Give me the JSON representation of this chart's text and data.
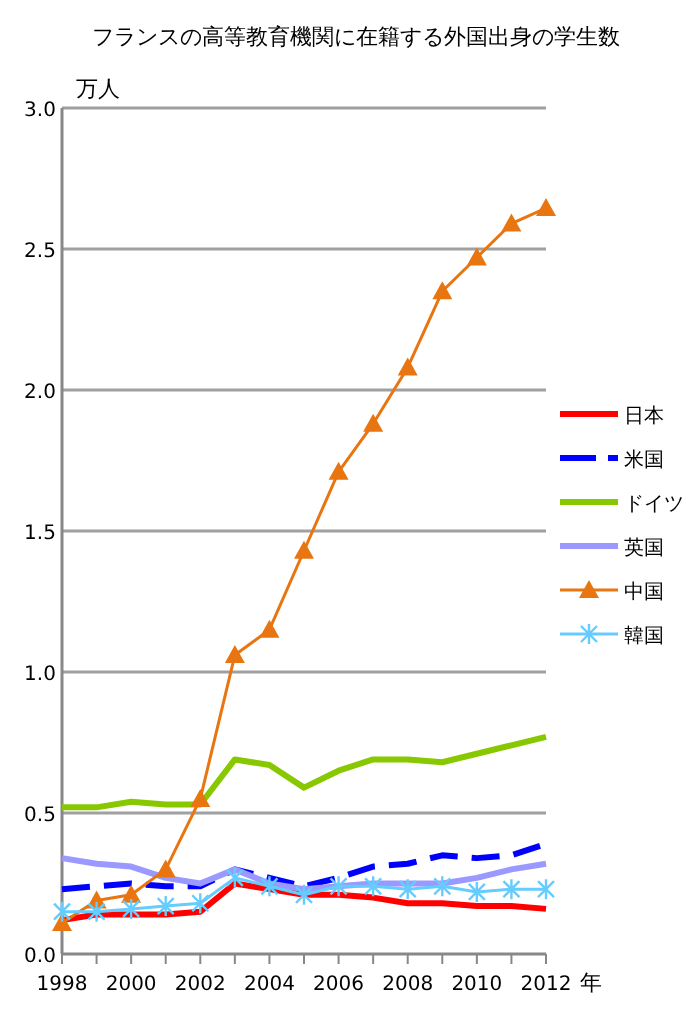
{
  "chart_data": {
    "type": "line",
    "title": "フランスの高等教育機関に在籍する外国出身の学生数",
    "ylabel": "万人",
    "xlabel": "年",
    "x": [
      1998,
      1999,
      2000,
      2001,
      2002,
      2003,
      2004,
      2005,
      2006,
      2007,
      2008,
      2009,
      2010,
      2011,
      2012
    ],
    "xlim": [
      1998,
      2012
    ],
    "xticks": [
      1998,
      {
        "value": 1999,
        "label": null
      },
      2000,
      {
        "value": 2001,
        "label": null
      },
      2002,
      {
        "value": 2003,
        "label": null
      },
      2004,
      {
        "value": 2005,
        "label": null
      },
      2006,
      {
        "value": 2007,
        "label": null
      },
      2008,
      {
        "value": 2009,
        "label": null
      },
      2010,
      {
        "value": 2011,
        "label": null
      },
      2012
    ],
    "ylim": [
      0,
      3
    ],
    "yticks": [
      {
        "value": 0,
        "label": "0.0"
      },
      0.5,
      {
        "value": 1,
        "label": "1.0"
      },
      1.5,
      {
        "value": 2,
        "label": "2.0"
      },
      2.5,
      {
        "value": 3,
        "label": "3.0"
      }
    ],
    "grid": "y",
    "legend": "right",
    "series": [
      {
        "name": "日本",
        "color": "#ff0000",
        "values": [
          0.12,
          0.14,
          0.14,
          0.14,
          0.15,
          0.25,
          0.23,
          0.21,
          0.21,
          0.2,
          0.18,
          0.18,
          0.17,
          0.17,
          0.16
        ]
      },
      {
        "name": "米国",
        "color": "#0000ff",
        "line_style": "dashed",
        "values": [
          0.23,
          0.24,
          0.25,
          0.24,
          0.24,
          0.3,
          0.27,
          0.24,
          0.27,
          0.31,
          0.32,
          0.35,
          0.34,
          0.35,
          0.39
        ]
      },
      {
        "name": "ドイツ",
        "color": "#88c800",
        "values": [
          0.52,
          0.52,
          0.54,
          0.53,
          0.53,
          0.69,
          0.67,
          0.59,
          0.65,
          0.69,
          0.69,
          0.68,
          0.71,
          0.74,
          0.77
        ]
      },
      {
        "name": "英国",
        "color": "#9999ff",
        "values": [
          0.34,
          0.32,
          0.31,
          0.27,
          0.25,
          0.3,
          0.25,
          0.23,
          0.24,
          0.25,
          0.25,
          0.25,
          0.27,
          0.3,
          0.32
        ]
      },
      {
        "name": "中国",
        "color": "#e87510",
        "marker": "triangle",
        "values": [
          0.11,
          0.19,
          0.21,
          0.3,
          0.55,
          1.06,
          1.15,
          1.43,
          1.71,
          1.88,
          2.08,
          2.35,
          2.47,
          2.59,
          2.645
        ]
      },
      {
        "name": "韓国",
        "color": "#66ccff",
        "marker": "cross",
        "values": [
          0.15,
          0.15,
          0.16,
          0.17,
          0.18,
          0.27,
          0.24,
          0.21,
          0.24,
          0.24,
          0.23,
          0.24,
          0.22,
          0.23,
          0.23
        ]
      }
    ]
  }
}
